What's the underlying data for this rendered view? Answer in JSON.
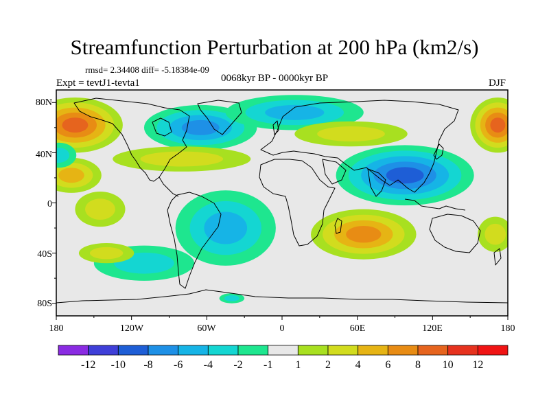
{
  "header": {
    "title": "Streamfunction Perturbation at 200 hPa (km2/s)",
    "stats": "rmsd= 2.34408  diff= -5.18384e-09",
    "experiment": "Expt = tevtJ1-tevta1",
    "period": "0068kyr BP - 0000kyr BP",
    "season": "DJF"
  },
  "axes": {
    "lat_labels": [
      "80N",
      "40N",
      "0",
      "40S",
      "80S"
    ],
    "lon_labels": [
      "180",
      "120W",
      "60W",
      "0",
      "60E",
      "120E",
      "180"
    ]
  },
  "colorbar": {
    "labels": [
      "-12",
      "-10",
      "-8",
      "-6",
      "-4",
      "-2",
      "-1",
      "1",
      "2",
      "4",
      "6",
      "8",
      "10",
      "12"
    ],
    "colors": [
      "#8a2be2",
      "#3f3fd8",
      "#1e5ed6",
      "#1e90e6",
      "#16b4e6",
      "#14d6d2",
      "#1ee68f",
      "#e8e8e8",
      "#a8e020",
      "#d2dc1e",
      "#e6b414",
      "#e88c14",
      "#e6641e",
      "#e6321e",
      "#f01414"
    ]
  },
  "chart_data": {
    "type": "contour-map",
    "variable": "Streamfunction Perturbation",
    "level": "200 hPa",
    "units": "km2/s",
    "levels": [
      -12,
      -10,
      -8,
      -6,
      -4,
      -2,
      -1,
      1,
      2,
      4,
      6,
      8,
      10,
      12
    ],
    "lon_range": [
      -180,
      180
    ],
    "lat_range": [
      -90,
      90
    ],
    "features": [
      {
        "name": "north-pacific-high",
        "lon": -165,
        "lat": 62,
        "value": 8
      },
      {
        "name": "north-atlantic-low",
        "lon": -60,
        "lat": 60,
        "value": -6
      },
      {
        "name": "eurasian-low",
        "lon": 10,
        "lat": 70,
        "value": -5
      },
      {
        "name": "south-asian-low",
        "lon": 100,
        "lat": 20,
        "value": -8
      },
      {
        "name": "subtropical-pacific-high",
        "lon": -170,
        "lat": 22,
        "value": 5
      },
      {
        "name": "south-american-low",
        "lon": -45,
        "lat": -25,
        "value": -4
      },
      {
        "name": "south-african-high",
        "lon": 65,
        "lat": -25,
        "value": 7
      },
      {
        "name": "south-pacific-high",
        "lon": -125,
        "lat": -38,
        "value": 3
      },
      {
        "name": "far-east-high",
        "lon": 170,
        "lat": 62,
        "value": 8
      }
    ]
  }
}
